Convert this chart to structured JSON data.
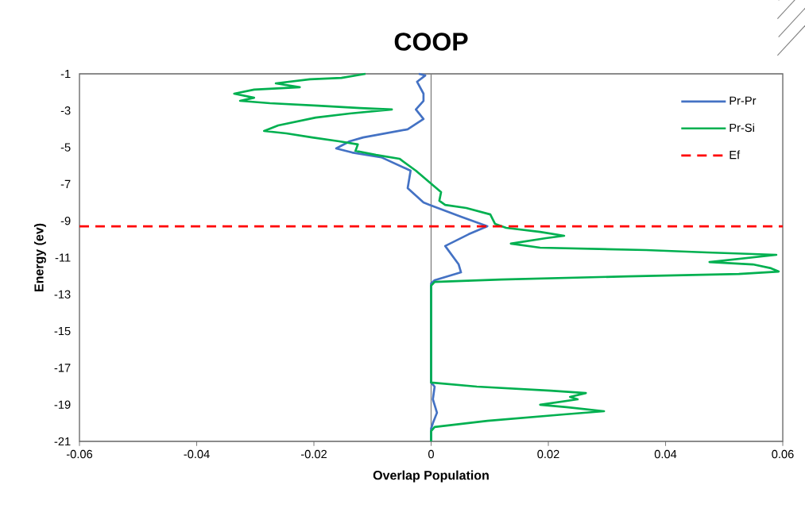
{
  "chart_data": {
    "type": "line",
    "title": "COOP",
    "xlabel": "Overlap Population",
    "ylabel": "Energy (ev)",
    "xlim": [
      -0.06,
      0.06
    ],
    "xticks": [
      -0.06,
      -0.04,
      -0.02,
      0,
      0.02,
      0.04,
      0.06
    ],
    "ylim": [
      -21,
      -1
    ],
    "yticks": [
      -1,
      -3,
      -5,
      -7,
      -9,
      -11,
      -13,
      -15,
      -17,
      -19,
      -21
    ],
    "legend": "top right",
    "marker": "none",
    "line_style": "solid",
    "series": [
      {
        "name": "Pr-Pr",
        "color": "#4472c4",
        "x": [
          -0.0021,
          -0.001,
          -0.0024,
          -0.0013,
          -0.0013,
          -0.0026,
          -0.0013,
          -0.004,
          -0.0116,
          -0.0139,
          -0.0162,
          -0.0135,
          -0.0085,
          -0.0035,
          -0.004,
          -0.0013,
          -0.0003,
          0.0051,
          0.0096,
          0.0064,
          0.0024,
          0.0047,
          0.0051,
          0.0006,
          0,
          0,
          0.0006,
          0.0003,
          0.001,
          0.0003,
          0,
          0
        ],
        "values": [
          -1.0,
          -1.09,
          -1.43,
          -2.08,
          -2.47,
          -2.94,
          -3.46,
          -4.02,
          -4.46,
          -4.67,
          -5.06,
          -5.28,
          -5.54,
          -6.27,
          -7.22,
          -8.0,
          -8.13,
          -8.78,
          -9.29,
          -9.73,
          -10.37,
          -11.37,
          -11.8,
          -12.23,
          -12.4,
          -17.8,
          -18.02,
          -18.71,
          -19.44,
          -20.01,
          -20.31,
          -21.0
        ]
      },
      {
        "name": "Pr-Si",
        "color": "#00b050",
        "x": [
          -0.0112,
          -0.0153,
          -0.0207,
          -0.0265,
          -0.0224,
          -0.0302,
          -0.0336,
          -0.0302,
          -0.0326,
          -0.0275,
          -0.0193,
          -0.0121,
          -0.0067,
          -0.0139,
          -0.0197,
          -0.0261,
          -0.0285,
          -0.0247,
          -0.0203,
          -0.0157,
          -0.0125,
          -0.0129,
          -0.0094,
          -0.0054,
          -0.0026,
          0.0001,
          0.0017,
          0.0014,
          0.0024,
          0.006,
          0.0101,
          0.0109,
          0.0128,
          0.0186,
          0.0227,
          0.0196,
          0.0136,
          0.0186,
          0.0367,
          0.0471,
          0.0589,
          0.0475,
          0.0549,
          0.058,
          0.0593,
          0.0525,
          0.0336,
          0.0119,
          0.0006,
          0,
          0,
          0.0078,
          0.0204,
          0.0264,
          0.0237,
          0.025,
          0.0186,
          0.0231,
          0.0295,
          0.0227,
          0.0096,
          0.0006,
          0,
          0
        ],
        "values": [
          -1.0,
          -1.22,
          -1.3,
          -1.52,
          -1.73,
          -1.86,
          -2.08,
          -2.3,
          -2.47,
          -2.6,
          -2.73,
          -2.86,
          -2.94,
          -3.16,
          -3.38,
          -3.81,
          -4.11,
          -4.24,
          -4.46,
          -4.67,
          -4.84,
          -5.19,
          -5.41,
          -5.62,
          -6.27,
          -7.0,
          -7.44,
          -7.91,
          -8.13,
          -8.3,
          -8.65,
          -9.16,
          -9.38,
          -9.6,
          -9.81,
          -9.94,
          -10.24,
          -10.46,
          -10.59,
          -10.72,
          -10.85,
          -11.24,
          -11.37,
          -11.58,
          -11.76,
          -11.89,
          -12.02,
          -12.19,
          -12.32,
          -12.53,
          -17.8,
          -18.02,
          -18.24,
          -18.37,
          -18.58,
          -18.71,
          -19.01,
          -19.14,
          -19.36,
          -19.53,
          -19.88,
          -20.22,
          -20.44,
          -21.0
        ]
      }
    ],
    "ref_lines": [
      {
        "axis": "y",
        "value": -9.3,
        "label": "Ef",
        "color": "#ff0000",
        "line_style": "dashed"
      }
    ]
  }
}
